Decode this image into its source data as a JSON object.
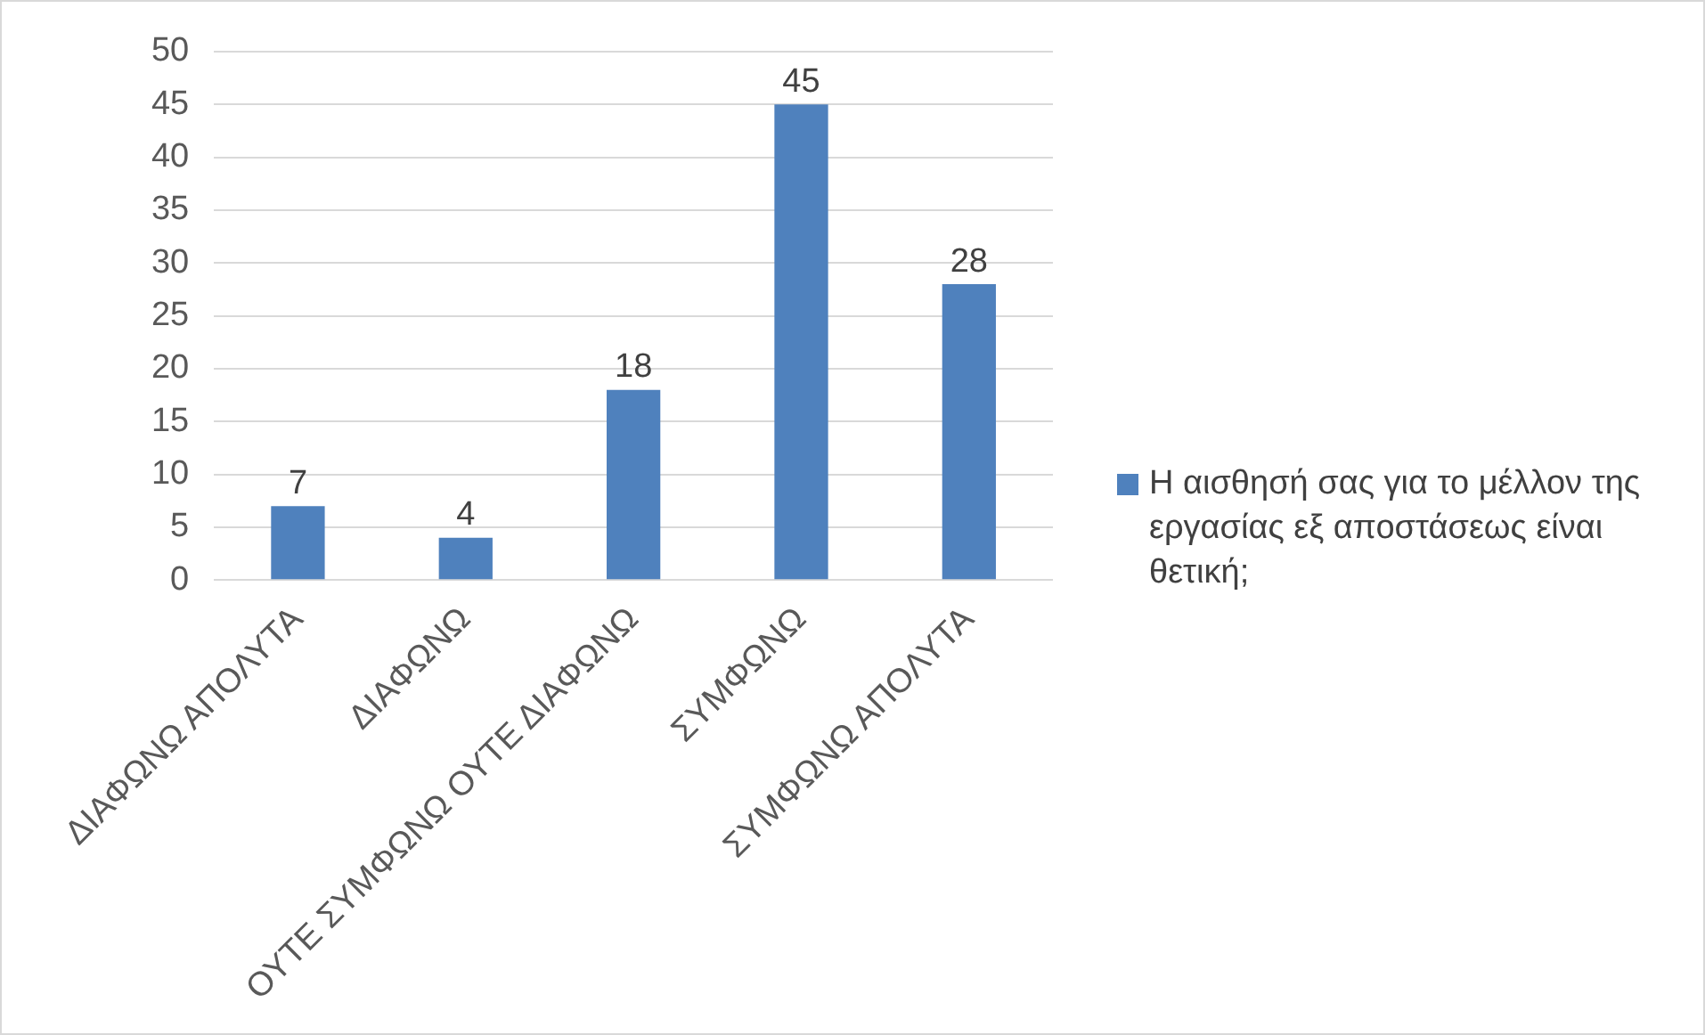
{
  "chart_data": {
    "type": "bar",
    "categories": [
      "ΔΙΑΦΩΝΩ ΑΠΟΛΥΤΑ",
      "ΔΙΑΦΩΝΩ",
      "ΟΥΤΕ ΣΥΜΦΩΝΩ ΟΥΤΕ ΔΙΑΦΩΝΩ",
      "ΣΥΜΦΩΝΩ",
      "ΣΥΜΦΩΝΩ ΑΠΟΛΥΤΑ"
    ],
    "series": [
      {
        "name": "Η αισθησή σας για το μέλλον της εργασίας εξ αποστάσεως είναι θετική;",
        "color": "#4f81bd",
        "values": [
          7,
          4,
          18,
          45,
          28
        ]
      }
    ],
    "ylim": [
      0,
      50
    ],
    "yticks": [
      0,
      5,
      10,
      15,
      20,
      25,
      30,
      35,
      40,
      45,
      50
    ],
    "grid": "y",
    "legend": "right",
    "data_labels": true
  }
}
